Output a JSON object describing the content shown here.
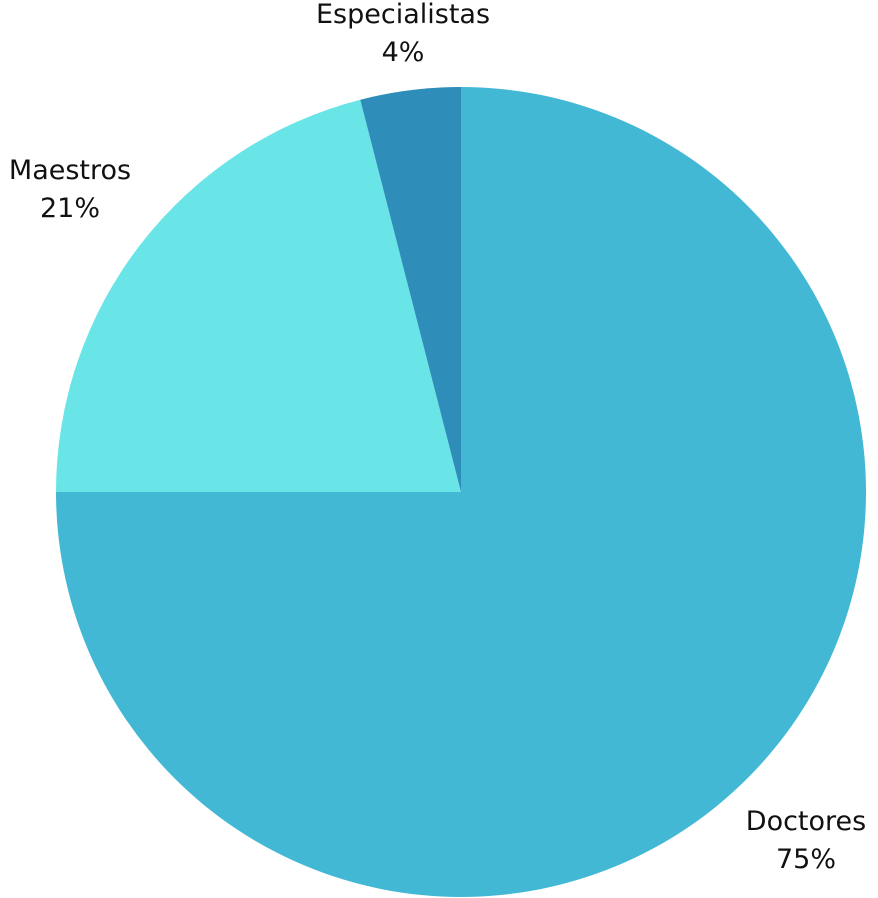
{
  "chart_data": {
    "type": "pie",
    "start_angle_deg": 0,
    "direction": "clockwise",
    "slices": [
      {
        "label": "Doctores",
        "percent_text": "75%",
        "value": 75,
        "color": "#43b8d4"
      },
      {
        "label": "Maestros",
        "percent_text": "21%",
        "value": 21,
        "color": "#69e5e8"
      },
      {
        "label": "Especialistas",
        "percent_text": "4%",
        "value": 4,
        "color": "#2e8db9"
      }
    ]
  }
}
